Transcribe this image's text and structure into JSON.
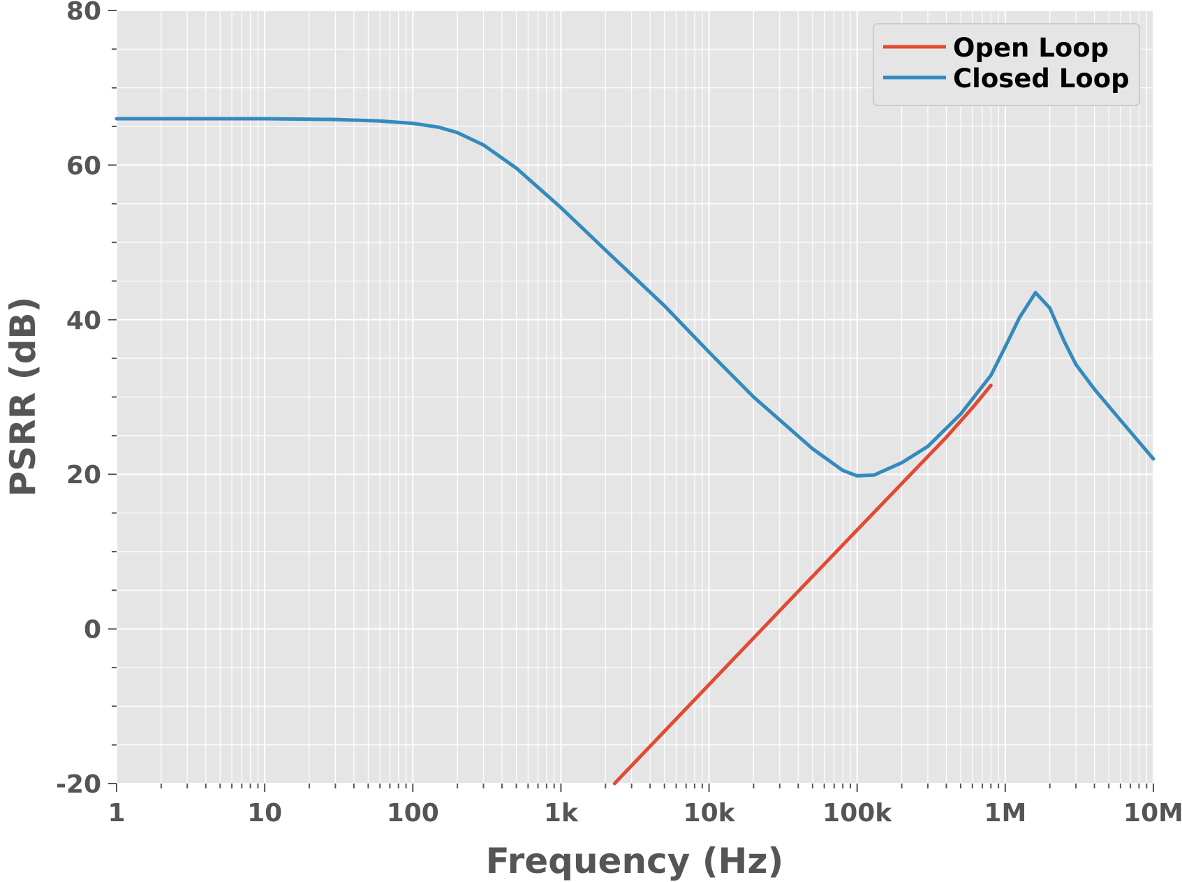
{
  "chart_data": {
    "type": "line",
    "xlabel": "Frequency (Hz)",
    "ylabel": "PSRR (dB)",
    "x_scale": "log",
    "xlim": [
      1,
      10000000
    ],
    "ylim": [
      -20,
      80
    ],
    "x_ticks": [
      {
        "value": 1,
        "label": "1"
      },
      {
        "value": 10,
        "label": "10"
      },
      {
        "value": 100,
        "label": "100"
      },
      {
        "value": 1000,
        "label": "1k"
      },
      {
        "value": 10000,
        "label": "10k"
      },
      {
        "value": 100000,
        "label": "100k"
      },
      {
        "value": 1000000,
        "label": "1M"
      },
      {
        "value": 10000000,
        "label": "10M"
      }
    ],
    "y_ticks": [
      {
        "value": -20,
        "label": "-20"
      },
      {
        "value": 0,
        "label": "0"
      },
      {
        "value": 20,
        "label": "20"
      },
      {
        "value": 40,
        "label": "40"
      },
      {
        "value": 60,
        "label": "60"
      },
      {
        "value": 80,
        "label": "80"
      }
    ],
    "y_minor_step": 5,
    "grid": true,
    "legend_position": "top-right",
    "background_color": "#e5e5e5",
    "grid_color": "#ffffff",
    "series": [
      {
        "name": "Open Loop",
        "color": "#e24a33",
        "points": [
          [
            2300,
            -20
          ],
          [
            10000,
            -7.2
          ],
          [
            50000,
            6.8
          ],
          [
            100000,
            12.8
          ],
          [
            200000,
            18.8
          ],
          [
            400000,
            24.8
          ],
          [
            600000,
            28.6
          ],
          [
            800000,
            31.5
          ]
        ]
      },
      {
        "name": "Closed Loop",
        "color": "#348abd",
        "points": [
          [
            1,
            66
          ],
          [
            10,
            66
          ],
          [
            30,
            65.9
          ],
          [
            60,
            65.7
          ],
          [
            100,
            65.4
          ],
          [
            150,
            64.9
          ],
          [
            200,
            64.2
          ],
          [
            300,
            62.6
          ],
          [
            500,
            59.6
          ],
          [
            1000,
            54.5
          ],
          [
            2000,
            49
          ],
          [
            5000,
            41.8
          ],
          [
            10000,
            35.8
          ],
          [
            20000,
            30
          ],
          [
            50000,
            23.3
          ],
          [
            80000,
            20.5
          ],
          [
            100000,
            19.8
          ],
          [
            130000,
            19.9
          ],
          [
            200000,
            21.5
          ],
          [
            300000,
            23.6
          ],
          [
            500000,
            27.8
          ],
          [
            800000,
            32.8
          ],
          [
            1000000,
            36.5
          ],
          [
            1250000,
            40.3
          ],
          [
            1600000,
            43.5
          ],
          [
            2000000,
            41.5
          ],
          [
            2500000,
            37.2
          ],
          [
            3000000,
            34.2
          ],
          [
            4000000,
            31
          ],
          [
            6000000,
            27
          ],
          [
            10000000,
            22
          ]
        ]
      }
    ]
  }
}
